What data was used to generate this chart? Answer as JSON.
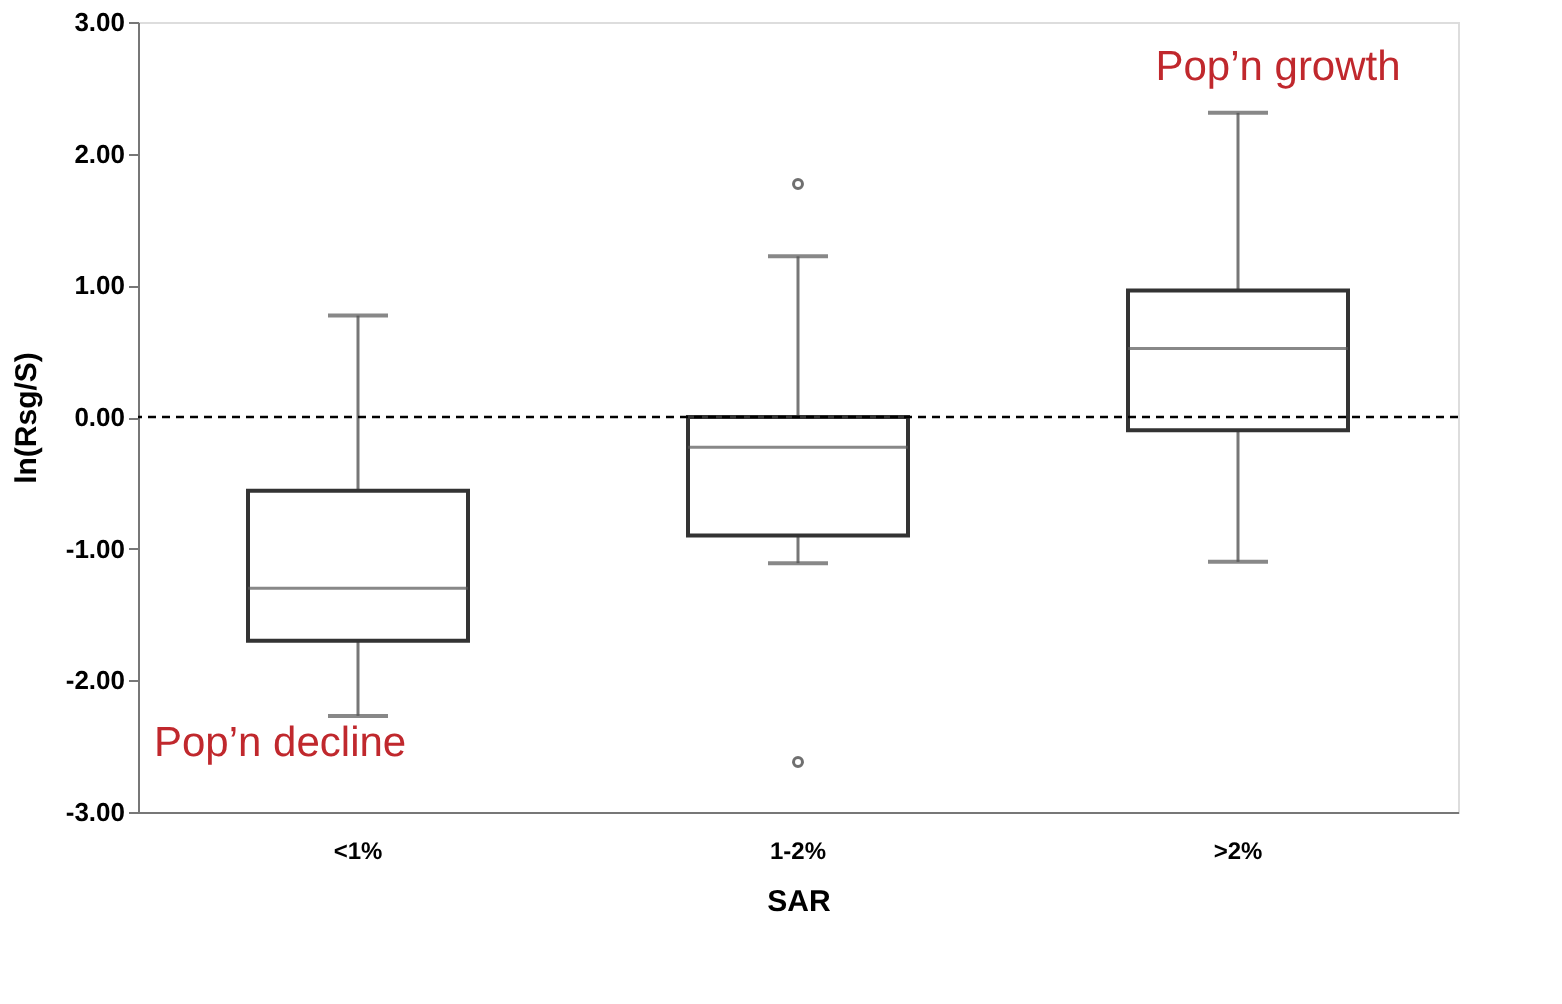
{
  "chart_data": {
    "type": "box",
    "xlabel": "SAR",
    "ylabel": "ln(Rsg/S)",
    "categories": [
      "<1%",
      "1-2%",
      ">2%"
    ],
    "series": [
      {
        "color": "#333333",
        "boxes": [
          {
            "low": -2.27,
            "q1": -1.7,
            "median": -1.3,
            "q3": -0.56,
            "high": 0.77
          },
          {
            "low": -1.11,
            "q1": -0.9,
            "median": -0.23,
            "q3": 0.0,
            "high": 1.22,
            "outliers": [
              1.77,
              -2.62
            ]
          },
          {
            "low": -1.1,
            "q1": -0.1,
            "median": 0.52,
            "q3": 0.96,
            "high": 2.31
          }
        ]
      }
    ],
    "ylim": [
      -3,
      3
    ],
    "yticks": [
      {
        "value": -3,
        "label": "-3.00"
      },
      {
        "value": -2,
        "label": "-2.00"
      },
      {
        "value": -1,
        "label": "-1.00"
      },
      {
        "value": 0,
        "label": "0.00"
      },
      {
        "value": 1,
        "label": "1.00"
      },
      {
        "value": 2,
        "label": "2.00"
      },
      {
        "value": 3,
        "label": "3.00"
      }
    ],
    "ref_lines": [
      {
        "axis": "y",
        "value": 0,
        "color": "#000000",
        "line_style": "dashed"
      }
    ],
    "annotations": [
      "Pop’n growth",
      "Pop’n decline"
    ],
    "grid": false
  }
}
